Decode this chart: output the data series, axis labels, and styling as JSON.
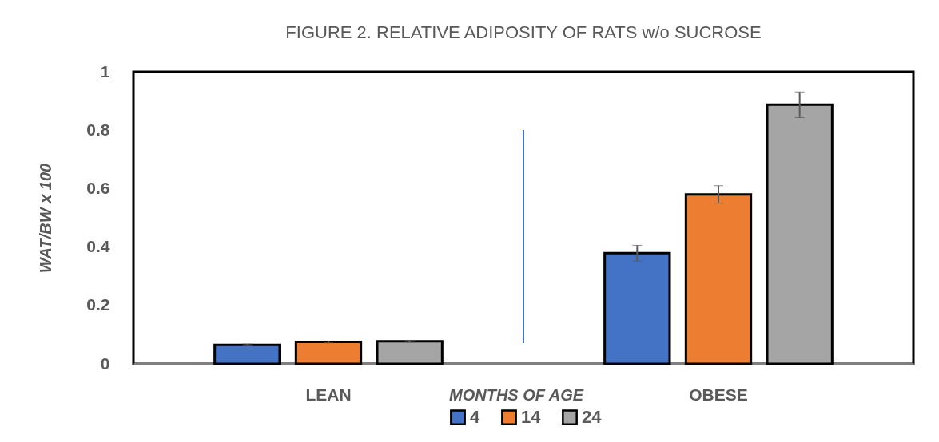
{
  "chart_data": {
    "type": "bar",
    "title": "FIGURE 2. RELATIVE ADIPOSITY OF RATS  w/o SUCROSE",
    "ylabel": "WAT/BW x 100",
    "legend_title": "MONTHS OF AGE",
    "legend": "bottom",
    "categories": [
      "LEAN",
      "OBESE"
    ],
    "series": [
      {
        "name": "4",
        "color": "#4472c4",
        "values": [
          0.065,
          0.379
        ],
        "errors": [
          0.003,
          0.027
        ]
      },
      {
        "name": "14",
        "color": "#ed7d31",
        "values": [
          0.075,
          0.58
        ],
        "errors": [
          0.003,
          0.03
        ]
      },
      {
        "name": "24",
        "color": "#a5a5a5",
        "values": [
          0.077,
          0.887
        ],
        "errors": [
          0.003,
          0.044
        ]
      }
    ],
    "ylim": [
      0,
      1
    ],
    "yticks": [
      0,
      0.2,
      0.4,
      0.6,
      0.8,
      1
    ]
  }
}
